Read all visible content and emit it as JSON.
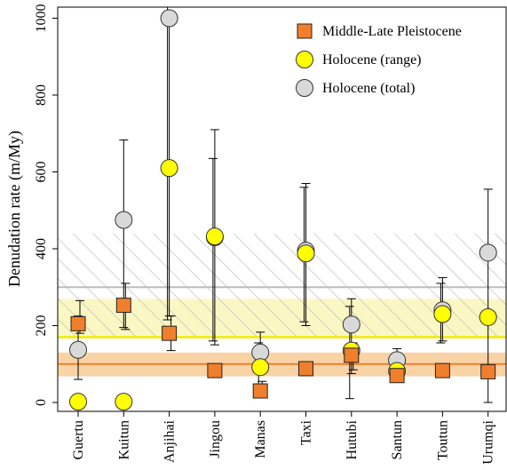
{
  "chart_data": {
    "type": "scatter",
    "title": "",
    "xlabel": "",
    "ylabel": "Denudation rate (m/My)",
    "ylim": [
      0,
      1060
    ],
    "yticks": [
      0,
      200,
      400,
      600,
      800,
      1000
    ],
    "grid": false,
    "legend_position": "top-right",
    "categories": [
      "Guertu",
      "Kuitun",
      "Anjihai",
      "Jingou",
      "Manas",
      "Taxi",
      "Hutubi",
      "Santun",
      "Toutun",
      "Urumqi"
    ],
    "colors": {
      "pleistocene": "#f07f2c",
      "holocene_range": "#ffff00",
      "holocene_total": "#d9d9d9",
      "pleistocene_band": "#f9d3a6",
      "range_band": "#fbf7c4",
      "total_band_hatch": "#b5b5b5"
    },
    "bands": [
      {
        "series": "Middle-Late Pleistocene",
        "center": 100,
        "low": 68,
        "high": 130
      },
      {
        "series": "Holocene (range)",
        "center": 170,
        "low": 170,
        "high": 270
      },
      {
        "series": "Holocene (total)",
        "center": 300,
        "low": 170,
        "high": 440
      }
    ],
    "series": [
      {
        "name": "Middle-Late Pleistocene",
        "marker": "square",
        "values": [
          205,
          253,
          180,
          83,
          30,
          88,
          123,
          70,
          83,
          80
        ],
        "err_low": [
          180,
          190,
          135,
          75,
          15,
          78,
          85,
          65,
          75,
          70
        ],
        "err_high": [
          265,
          310,
          225,
          100,
          55,
          98,
          155,
          78,
          100,
          95
        ]
      },
      {
        "name": "Holocene (range)",
        "marker": "circle",
        "values": [
          2,
          2,
          610,
          432,
          92,
          388,
          135,
          82,
          230,
          222
        ],
        "err_low": [
          null,
          null,
          215,
          160,
          40,
          210,
          10,
          60,
          155,
          null
        ],
        "err_high": [
          null,
          null,
          1060,
          635,
          155,
          560,
          250,
          110,
          310,
          null
        ]
      },
      {
        "name": "Holocene (total)",
        "marker": "circle",
        "values": [
          137,
          475,
          1000,
          430,
          130,
          395,
          203,
          110,
          240,
          390
        ],
        "err_low": [
          60,
          195,
          225,
          150,
          80,
          200,
          75,
          80,
          160,
          0
        ],
        "err_high": [
          225,
          683,
          1000,
          710,
          183,
          570,
          270,
          140,
          325,
          555
        ]
      }
    ]
  }
}
